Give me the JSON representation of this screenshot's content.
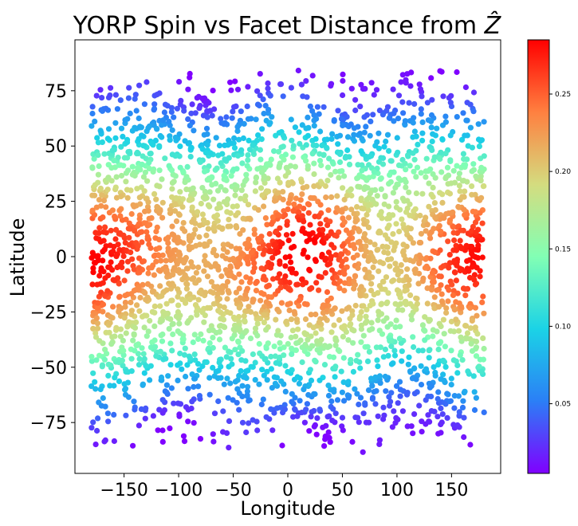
{
  "chart_data": {
    "type": "scatter",
    "title": "YORP Spin vs Facet Distance from",
    "title_symbol": "Ẑ",
    "xlabel": "Longitude",
    "ylabel": "Latitude",
    "xlim": [
      -195,
      195
    ],
    "ylim": [
      -98,
      98
    ],
    "xticks": [
      -150,
      -100,
      -50,
      0,
      50,
      100,
      150
    ],
    "xtick_labels": [
      "−150",
      "−100",
      "−50",
      "0",
      "50",
      "100",
      "150"
    ],
    "yticks": [
      -75,
      -50,
      -25,
      0,
      25,
      50,
      75
    ],
    "ytick_labels": [
      "−75",
      "−50",
      "−25",
      "0",
      "25",
      "50",
      "75"
    ],
    "grid": false,
    "colormap": "rainbow",
    "colormap_stops": [
      "#8000ff",
      "#2b7ff6",
      "#1bd3e6",
      "#82ffb4",
      "#d4dc7f",
      "#ff8040",
      "#ff0000"
    ],
    "colorbar": {
      "range": [
        0.005,
        0.285
      ],
      "ticks": [
        0.05,
        0.1,
        0.15,
        0.2,
        0.25
      ],
      "tick_labels": [
        "0.05",
        "0.10",
        "0.15",
        "0.20",
        "0.25"
      ]
    },
    "sample_points": [
      {
        "x": -160,
        "y": 0,
        "c": 0.28
      },
      {
        "x": -55,
        "y": 2,
        "c": 0.27
      },
      {
        "x": 15,
        "y": -1,
        "c": 0.28
      },
      {
        "x": 130,
        "y": 1,
        "c": 0.28
      },
      {
        "x": 0,
        "y": 50,
        "c": 0.16
      },
      {
        "x": 0,
        "y": -50,
        "c": 0.16
      },
      {
        "x": -120,
        "y": 80,
        "c": 0.05
      },
      {
        "x": 60,
        "y": -80,
        "c": 0.05
      },
      {
        "x": -30,
        "y": 89,
        "c": 0.01
      },
      {
        "x": 8,
        "y": -89,
        "c": 0.01
      }
    ]
  }
}
